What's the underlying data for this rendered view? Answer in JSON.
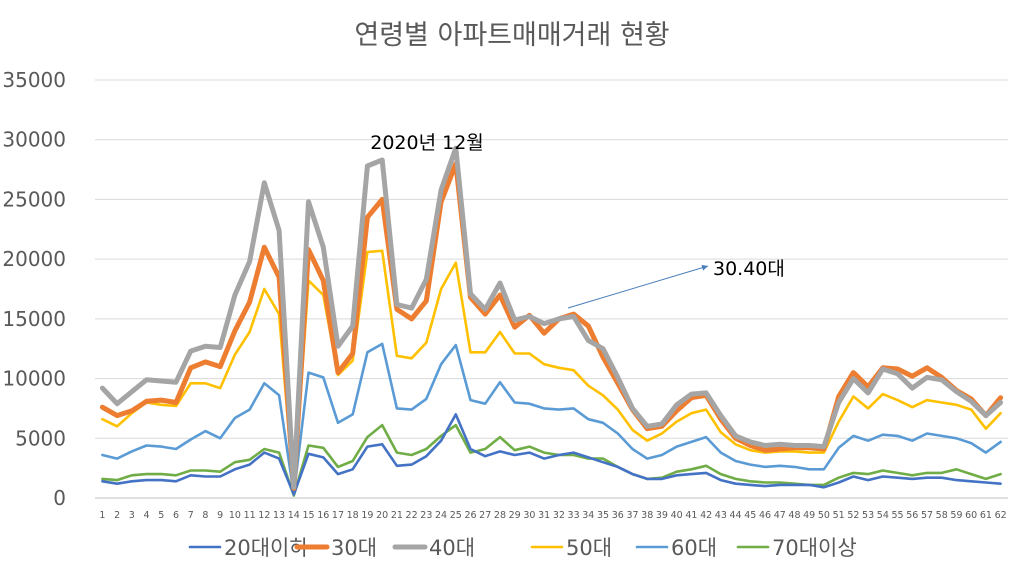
{
  "chart_data": {
    "type": "line",
    "title": "연령별 아파트매매거래 현황",
    "xlabel": "",
    "ylabel": "",
    "ylim": [
      0,
      35000
    ],
    "y_ticks": [
      "0",
      "5000",
      "10000",
      "15000",
      "20000",
      "25000",
      "30000",
      "35000"
    ],
    "grid": true,
    "legend_position": "bottom",
    "x": [
      "1",
      "2",
      "3",
      "4",
      "5",
      "6",
      "7",
      "8",
      "9",
      "10",
      "11",
      "12",
      "13",
      "14",
      "15",
      "16",
      "17",
      "18",
      "19",
      "20",
      "21",
      "22",
      "23",
      "24",
      "25",
      "26",
      "27",
      "28",
      "29",
      "30",
      "31",
      "32",
      "33",
      "34",
      "35",
      "36",
      "37",
      "38",
      "39",
      "40",
      "41",
      "42",
      "43",
      "44",
      "45",
      "46",
      "47",
      "48",
      "49",
      "50",
      "51",
      "52",
      "53",
      "54",
      "55",
      "56",
      "57",
      "58",
      "59",
      "60",
      "61",
      "62"
    ],
    "series": [
      {
        "name": "20대이하",
        "color": "#4472c4",
        "width": 2.6,
        "values": [
          1400,
          1200,
          1400,
          1500,
          1500,
          1400,
          1900,
          1800,
          1800,
          2400,
          2800,
          3800,
          3300,
          300,
          3700,
          3400,
          2000,
          2400,
          4300,
          4500,
          2700,
          2800,
          3500,
          4800,
          7000,
          4100,
          3500,
          3900,
          3600,
          3800,
          3300,
          3600,
          3800,
          3400,
          3000,
          2600,
          2000,
          1600,
          1600,
          1900,
          2000,
          2100,
          1500,
          1200,
          1100,
          1000,
          1100,
          1100,
          1100,
          900,
          1300,
          1800,
          1500,
          1800,
          1700,
          1600,
          1700,
          1700,
          1500,
          1400,
          1300,
          1200
        ]
      },
      {
        "name": "30대",
        "color": "#ed7d31",
        "width": 5,
        "values": [
          7600,
          6900,
          7300,
          8100,
          8200,
          8000,
          10900,
          11400,
          11000,
          14000,
          16400,
          21000,
          18500,
          800,
          20800,
          18200,
          10500,
          12100,
          23500,
          25000,
          15800,
          15000,
          16500,
          24800,
          28000,
          16800,
          15400,
          17000,
          14300,
          15300,
          13800,
          15000,
          15400,
          14400,
          11800,
          9600,
          7400,
          5800,
          6000,
          7300,
          8400,
          8600,
          6600,
          5000,
          4400,
          4000,
          4100,
          4200,
          4200,
          4100,
          8500,
          10500,
          9300,
          10900,
          10800,
          10200,
          10900,
          10100,
          9000,
          8300,
          6900,
          8400
        ]
      },
      {
        "name": "40대",
        "color": "#a5a5a5",
        "width": 5,
        "values": [
          9200,
          7900,
          8900,
          9900,
          9800,
          9700,
          12300,
          12700,
          12600,
          17000,
          19800,
          26400,
          22400,
          900,
          24800,
          21000,
          12700,
          14400,
          27800,
          28300,
          16200,
          15900,
          18300,
          25800,
          29300,
          17100,
          15800,
          18000,
          14900,
          15200,
          14600,
          15000,
          15200,
          13200,
          12500,
          10100,
          7500,
          6000,
          6200,
          7800,
          8700,
          8800,
          6900,
          5200,
          4700,
          4400,
          4500,
          4400,
          4400,
          4300,
          8000,
          10000,
          8800,
          10800,
          10400,
          9200,
          10100,
          9900,
          8900,
          8100,
          6900,
          8000
        ]
      },
      {
        "name": "50대",
        "color": "#ffc000",
        "width": 2.6,
        "values": [
          6600,
          6000,
          7100,
          8000,
          7800,
          7700,
          9600,
          9600,
          9200,
          12000,
          13900,
          17500,
          15400,
          500,
          18200,
          17000,
          10300,
          11500,
          20600,
          20700,
          11900,
          11700,
          13000,
          17500,
          19700,
          12200,
          12200,
          13900,
          12100,
          12100,
          11200,
          10900,
          10700,
          9400,
          8600,
          7400,
          5700,
          4800,
          5400,
          6400,
          7100,
          7400,
          5500,
          4500,
          4000,
          3800,
          3900,
          3900,
          3800,
          3800,
          6400,
          8500,
          7500,
          8700,
          8200,
          7600,
          8200,
          8000,
          7800,
          7400,
          5800,
          7100
        ]
      },
      {
        "name": "60대",
        "color": "#5b9bd5",
        "width": 2.6,
        "values": [
          3600,
          3300,
          3900,
          4400,
          4300,
          4100,
          4900,
          5600,
          5000,
          6700,
          7400,
          9600,
          8600,
          300,
          10500,
          10100,
          6300,
          7000,
          12200,
          12900,
          7500,
          7400,
          8300,
          11200,
          12800,
          8200,
          7900,
          9700,
          8000,
          7900,
          7500,
          7400,
          7500,
          6600,
          6300,
          5400,
          4100,
          3300,
          3600,
          4300,
          4700,
          5100,
          3800,
          3100,
          2800,
          2600,
          2700,
          2600,
          2400,
          2400,
          4200,
          5200,
          4800,
          5300,
          5200,
          4800,
          5400,
          5200,
          5000,
          4600,
          3800,
          4700
        ]
      },
      {
        "name": "70대이상",
        "color": "#70ad47",
        "width": 2.6,
        "values": [
          1600,
          1500,
          1900,
          2000,
          2000,
          1900,
          2300,
          2300,
          2200,
          3000,
          3200,
          4100,
          3800,
          200,
          4400,
          4200,
          2600,
          3100,
          5100,
          6100,
          3800,
          3600,
          4100,
          5200,
          6100,
          3800,
          4100,
          5100,
          4000,
          4300,
          3800,
          3600,
          3600,
          3300,
          3300,
          2600,
          2000,
          1600,
          1700,
          2200,
          2400,
          2700,
          2000,
          1600,
          1400,
          1300,
          1300,
          1200,
          1100,
          1100,
          1700,
          2100,
          2000,
          2300,
          2100,
          1900,
          2100,
          2100,
          2400,
          2000,
          1600,
          2000
        ]
      }
    ],
    "annotations": {
      "peak_label": "2020년 12월",
      "arrow_label": "30.40대"
    }
  }
}
